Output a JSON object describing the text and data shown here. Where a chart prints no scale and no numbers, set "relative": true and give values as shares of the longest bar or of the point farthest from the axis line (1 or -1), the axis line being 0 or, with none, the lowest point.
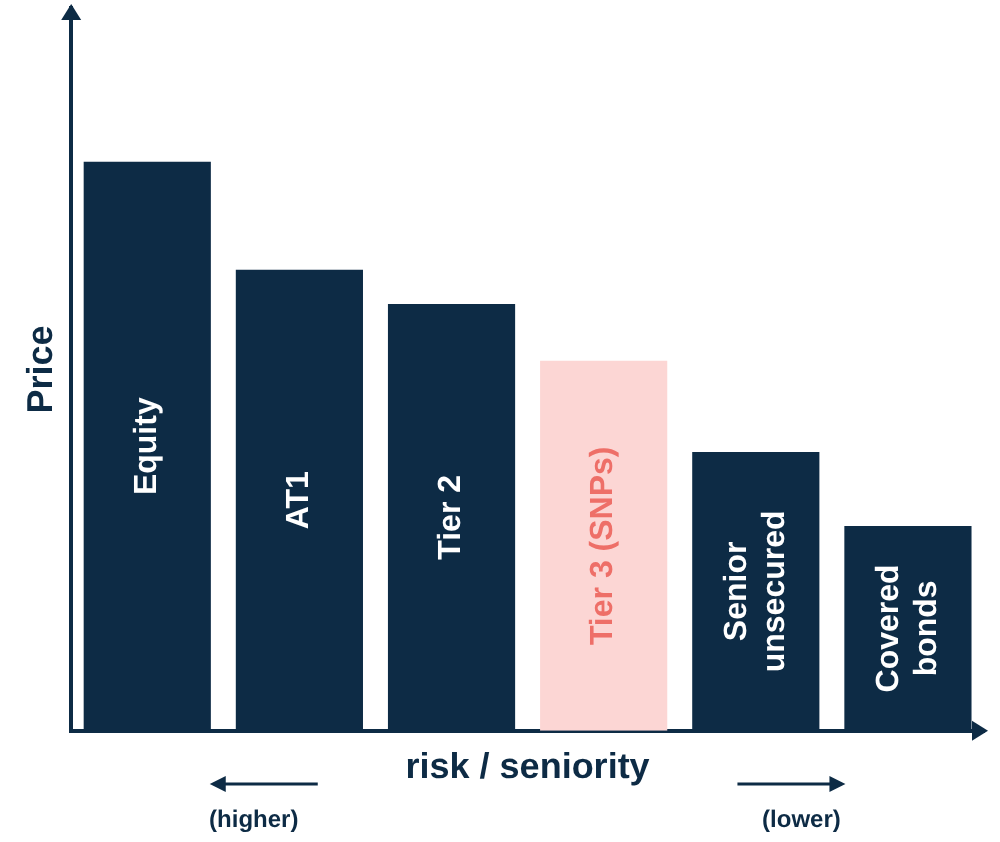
{
  "chart_data": {
    "type": "bar",
    "relative": true,
    "xlabel": "risk / seniority",
    "ylabel": "Price",
    "categories": [
      "Equity",
      "AT1",
      "Tier 2",
      "Tier 3 (SNPs)",
      "Senior unsecured",
      "Covered bonds"
    ],
    "values": [
      1,
      0.81,
      0.75,
      0.65,
      0.49,
      0.36
    ],
    "colors": [
      "#0d2b45",
      "#0d2b45",
      "#0d2b45",
      "#fcd6d4",
      "#0d2b45",
      "#0d2b45"
    ],
    "annotations": [
      "(higher)",
      "(lower)"
    ],
    "grid": false,
    "legend": false,
    "tick_labels": false
  }
}
